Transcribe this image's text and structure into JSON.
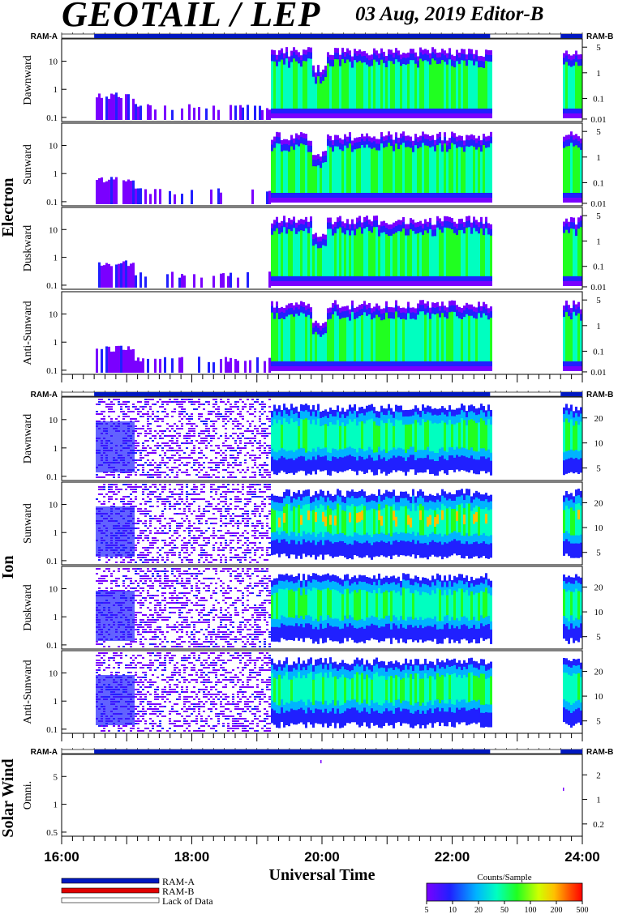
{
  "header": {
    "title": "GEOTAIL / LEP",
    "date_editor": "03 Aug, 2019   Editor-B"
  },
  "labels": {
    "ram_a": "RAM-A",
    "ram_b": "RAM-B",
    "xlabel": "Universal Time"
  },
  "colors": {
    "ram_a": "#0018c0",
    "ram_b": "#e00000",
    "lack_of_data": "#ffffff"
  },
  "legend": {
    "items": [
      "RAM-A",
      "RAM-B",
      "Lack of Data"
    ]
  },
  "colorbar": {
    "title": "Counts/Sample",
    "ticks": [
      "5",
      "10",
      "20",
      "50",
      "100",
      "200",
      "500"
    ],
    "colors": [
      "#7a00ff",
      "#2020ff",
      "#00b4ff",
      "#00ffc0",
      "#20ff20",
      "#d0ff00",
      "#ffc000",
      "#ff5000",
      "#ff0000"
    ]
  },
  "chart_data": {
    "type": "heatmap",
    "x_range": [
      "16:00",
      "24:00"
    ],
    "x_ticks": [
      "16:00",
      "18:00",
      "20:00",
      "22:00",
      "24:00"
    ],
    "data_coverage": {
      "ram_a": [
        [
          "16:30",
          "22:35"
        ],
        [
          "23:40",
          "24:00"
        ]
      ],
      "lack_of_data": [
        [
          "16:00",
          "16:30"
        ],
        [
          "22:35",
          "23:40"
        ]
      ]
    },
    "groups": [
      {
        "name": "Electron",
        "panels": [
          {
            "label": "Dawnward",
            "left_ticks": [
              "10",
              "1",
              "0.1"
            ],
            "right_ticks": [
              "5",
              "1",
              "0.1",
              "0.01"
            ]
          },
          {
            "label": "Sunward",
            "left_ticks": [
              "10",
              "1",
              "0.1"
            ],
            "right_ticks": [
              "5",
              "1",
              "0.1",
              "0.01"
            ]
          },
          {
            "label": "Duskward",
            "left_ticks": [
              "10",
              "1",
              "0.1"
            ],
            "right_ticks": [
              "5",
              "1",
              "0.1",
              "0.01"
            ]
          },
          {
            "label": "Anti-Sunward",
            "left_ticks": [
              "10",
              "1",
              "0.1"
            ],
            "right_ticks": [
              "5",
              "1",
              "0.1",
              "0.01"
            ]
          }
        ]
      },
      {
        "name": "Ion",
        "panels": [
          {
            "label": "Dawnward",
            "left_ticks": [
              "10",
              "1",
              "0.1"
            ],
            "right_ticks": [
              "20",
              "10",
              "5"
            ]
          },
          {
            "label": "Sunward",
            "left_ticks": [
              "10",
              "1",
              "0.1"
            ],
            "right_ticks": [
              "20",
              "10",
              "5"
            ]
          },
          {
            "label": "Duskward",
            "left_ticks": [
              "10",
              "1",
              "0.1"
            ],
            "right_ticks": [
              "20",
              "10",
              "5"
            ]
          },
          {
            "label": "Anti-Sunward",
            "left_ticks": [
              "10",
              "1",
              "0.1"
            ],
            "right_ticks": [
              "20",
              "10",
              "5"
            ]
          }
        ]
      },
      {
        "name": "Solar Wind",
        "panels": [
          {
            "label": "Omni.",
            "left_ticks": [
              "5",
              "1",
              "0.5"
            ],
            "right_ticks": [
              "2",
              "1",
              "0.2"
            ]
          }
        ]
      }
    ]
  }
}
